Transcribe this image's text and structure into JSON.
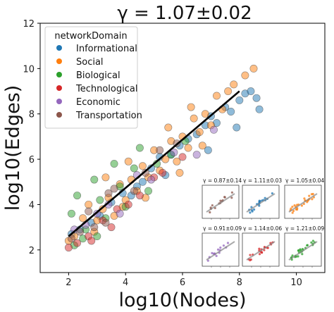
{
  "chart_data": {
    "type": "scatter",
    "title": "γ =  1.07±0.02",
    "xlabel": "log10(Nodes)",
    "ylabel": "log10(Edges)",
    "xlim": [
      1.0,
      11.0
    ],
    "ylim": [
      1.0,
      12.0
    ],
    "xticks": [
      "2",
      "4",
      "6",
      "8",
      "10"
    ],
    "yticks": [
      "2",
      "4",
      "6",
      "8",
      "10",
      "12"
    ],
    "grid": false,
    "legend": {
      "title": "networkDomain",
      "placement": "top-left",
      "entries": [
        {
          "name": "Informational",
          "color": "#1f77b4"
        },
        {
          "name": "Social",
          "color": "#ff7f0e"
        },
        {
          "name": "Biological",
          "color": "#2ca02c"
        },
        {
          "name": "Technological",
          "color": "#d62728"
        },
        {
          "name": "Economic",
          "color": "#9467bd"
        },
        {
          "name": "Transportation",
          "color": "#8c564b"
        }
      ]
    },
    "fit_line": {
      "x": [
        2.0,
        8.0
      ],
      "y": [
        2.6,
        9.0
      ],
      "color": "#000000"
    },
    "series": [
      {
        "name": "Informational",
        "color": "#1f77b4",
        "points": [
          [
            2.1,
            2.7
          ],
          [
            2.4,
            2.9
          ],
          [
            2.8,
            3.2
          ],
          [
            3.1,
            3.5
          ],
          [
            3.5,
            4.1
          ],
          [
            3.9,
            4.5
          ],
          [
            4.2,
            4.4
          ],
          [
            4.6,
            5.0
          ],
          [
            4.9,
            5.6
          ],
          [
            5.2,
            6.1
          ],
          [
            5.6,
            6.2
          ],
          [
            5.9,
            6.6
          ],
          [
            6.2,
            6.9
          ],
          [
            6.5,
            7.1
          ],
          [
            6.8,
            7.5
          ],
          [
            7.0,
            7.9
          ],
          [
            7.2,
            7.6
          ],
          [
            7.5,
            8.3
          ],
          [
            7.7,
            8.1
          ],
          [
            8.0,
            8.6
          ],
          [
            8.2,
            8.9
          ],
          [
            8.4,
            9.0
          ],
          [
            8.6,
            8.7
          ],
          [
            8.7,
            8.2
          ],
          [
            7.9,
            7.4
          ],
          [
            6.9,
            6.4
          ],
          [
            5.4,
            5.3
          ],
          [
            4.4,
            4.8
          ]
        ]
      },
      {
        "name": "Social",
        "color": "#ff7f0e",
        "points": [
          [
            2.0,
            2.4
          ],
          [
            2.2,
            2.6
          ],
          [
            2.5,
            3.4
          ],
          [
            2.7,
            4.0
          ],
          [
            3.0,
            3.3
          ],
          [
            3.2,
            3.8
          ],
          [
            3.4,
            4.3
          ],
          [
            3.6,
            3.5
          ],
          [
            3.8,
            4.9
          ],
          [
            4.0,
            4.2
          ],
          [
            4.2,
            5.1
          ],
          [
            4.4,
            4.6
          ],
          [
            4.6,
            5.7
          ],
          [
            4.8,
            5.2
          ],
          [
            5.0,
            6.4
          ],
          [
            5.2,
            5.5
          ],
          [
            5.4,
            6.0
          ],
          [
            5.6,
            6.8
          ],
          [
            5.8,
            5.9
          ],
          [
            6.0,
            7.0
          ],
          [
            6.2,
            6.5
          ],
          [
            6.4,
            7.8
          ],
          [
            6.6,
            7.2
          ],
          [
            6.8,
            8.0
          ],
          [
            7.0,
            7.5
          ],
          [
            7.2,
            8.8
          ],
          [
            7.4,
            8.2
          ],
          [
            7.6,
            9.0
          ],
          [
            7.8,
            9.3
          ],
          [
            8.2,
            9.7
          ],
          [
            8.5,
            10.0
          ],
          [
            3.3,
            5.2
          ],
          [
            4.1,
            5.9
          ],
          [
            5.5,
            7.4
          ],
          [
            6.3,
            8.3
          ],
          [
            2.9,
            2.8
          ],
          [
            3.9,
            3.9
          ],
          [
            4.7,
            4.3
          ],
          [
            5.9,
            5.4
          ],
          [
            6.7,
            6.6
          ]
        ]
      },
      {
        "name": "Biological",
        "color": "#2ca02c",
        "points": [
          [
            2.1,
            3.6
          ],
          [
            2.3,
            4.4
          ],
          [
            2.6,
            2.9
          ],
          [
            2.9,
            5.1
          ],
          [
            3.1,
            4.2
          ],
          [
            3.3,
            3.4
          ],
          [
            3.6,
            5.8
          ],
          [
            3.8,
            4.8
          ],
          [
            4.0,
            3.9
          ],
          [
            4.3,
            5.6
          ],
          [
            4.5,
            6.5
          ],
          [
            4.8,
            4.6
          ],
          [
            5.1,
            5.8
          ],
          [
            5.6,
            6.2
          ],
          [
            6.1,
            6.8
          ],
          [
            2.2,
            2.2
          ],
          [
            2.5,
            2.5
          ],
          [
            3.0,
            2.6
          ]
        ]
      },
      {
        "name": "Technological",
        "color": "#d62728",
        "points": [
          [
            2.0,
            2.1
          ],
          [
            2.3,
            2.3
          ],
          [
            2.7,
            2.6
          ],
          [
            3.2,
            3.3
          ],
          [
            3.7,
            3.8
          ],
          [
            4.1,
            4.0
          ],
          [
            4.5,
            4.4
          ],
          [
            5.0,
            5.2
          ],
          [
            5.3,
            5.4
          ],
          [
            6.0,
            6.1
          ],
          [
            2.8,
            2.4
          ],
          [
            3.5,
            3.0
          ]
        ]
      },
      {
        "name": "Economic",
        "color": "#9467bd",
        "points": [
          [
            2.2,
            2.9
          ],
          [
            2.6,
            3.1
          ],
          [
            3.0,
            3.6
          ],
          [
            3.4,
            4.0
          ],
          [
            3.8,
            3.6
          ],
          [
            4.4,
            5.3
          ],
          [
            4.9,
            5.1
          ],
          [
            5.7,
            6.3
          ],
          [
            6.5,
            6.2
          ],
          [
            7.1,
            7.3
          ]
        ]
      },
      {
        "name": "Transportation",
        "color": "#8c564b",
        "points": [
          [
            2.1,
            2.5
          ],
          [
            2.4,
            2.8
          ],
          [
            2.9,
            3.0
          ],
          [
            3.3,
            3.2
          ],
          [
            3.6,
            4.7
          ],
          [
            4.3,
            4.6
          ],
          [
            4.7,
            5.4
          ],
          [
            5.2,
            6.4
          ],
          [
            5.8,
            6.7
          ],
          [
            2.7,
            3.7
          ],
          [
            3.4,
            4.5
          ]
        ]
      }
    ],
    "insets": [
      {
        "domain": "Transportation",
        "gamma": "0.87±0.14",
        "color": "#8c564b"
      },
      {
        "domain": "Informational",
        "gamma": "1.11±0.03",
        "color": "#1f77b4"
      },
      {
        "domain": "Social",
        "gamma": "1.05±0.04",
        "color": "#ff7f0e"
      },
      {
        "domain": "Economic",
        "gamma": "0.91±0.09",
        "color": "#9467bd"
      },
      {
        "domain": "Technological",
        "gamma": "1.14±0.06",
        "color": "#d62728"
      },
      {
        "domain": "Biological",
        "gamma": "1.21±0.09",
        "color": "#2ca02c"
      }
    ]
  }
}
